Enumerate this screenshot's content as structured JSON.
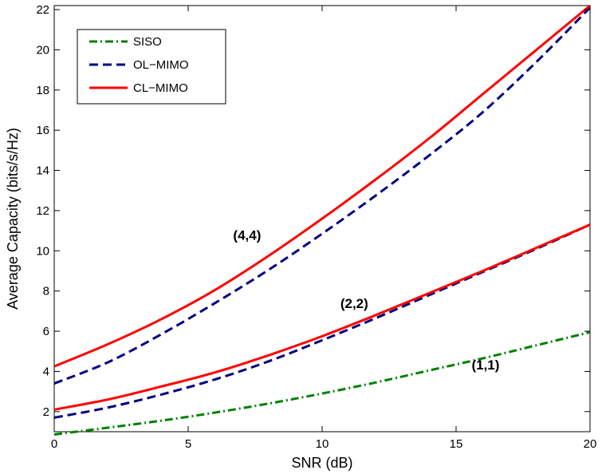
{
  "chart_data": {
    "type": "line",
    "xlabel": "SNR (dB)",
    "ylabel": "Average Capacity (bits/s/Hz)",
    "xlim": [
      0,
      20
    ],
    "ylim": [
      1,
      22.2
    ],
    "xticks": [
      0,
      5,
      10,
      15,
      20
    ],
    "yticks": [
      2,
      4,
      6,
      8,
      10,
      12,
      14,
      16,
      18,
      20,
      22
    ],
    "grid": false,
    "legend_position": "top-left",
    "legend": [
      {
        "name": "SISO",
        "color": "#008000",
        "dash": "dashdot"
      },
      {
        "name": "OL−MIMO",
        "color": "#000080",
        "dash": "dashed"
      },
      {
        "name": "CL−MIMO",
        "color": "#ff0000",
        "dash": "solid"
      }
    ],
    "x": [
      0,
      2,
      4,
      6,
      8,
      10,
      12,
      14,
      16,
      18,
      20
    ],
    "series": [
      {
        "label": "(1,1)",
        "kind": "SISO",
        "color": "#008000",
        "dash": "dashdot",
        "values": [
          0.86,
          1.2,
          1.55,
          1.95,
          2.4,
          2.9,
          3.45,
          4.05,
          4.65,
          5.3,
          5.95
        ]
      },
      {
        "label": "(2,2)",
        "kind": "OL−MIMO",
        "color": "#000080",
        "dash": "dashed",
        "values": [
          1.7,
          2.2,
          2.85,
          3.6,
          4.5,
          5.55,
          6.65,
          7.8,
          8.95,
          10.1,
          11.3
        ]
      },
      {
        "label": "(2,2)",
        "kind": "CL−MIMO",
        "color": "#ff0000",
        "dash": "solid",
        "values": [
          2.1,
          2.6,
          3.25,
          3.95,
          4.8,
          5.75,
          6.8,
          7.9,
          9.0,
          10.15,
          11.3
        ]
      },
      {
        "label": "(4,4)",
        "kind": "OL−MIMO",
        "color": "#000080",
        "dash": "dashed",
        "values": [
          3.4,
          4.45,
          5.85,
          7.4,
          9.05,
          10.85,
          12.75,
          14.75,
          16.9,
          19.4,
          22.1
        ]
      },
      {
        "label": "(4,4)",
        "kind": "CL−MIMO",
        "color": "#ff0000",
        "dash": "solid",
        "values": [
          4.25,
          5.35,
          6.6,
          8.05,
          9.75,
          11.6,
          13.55,
          15.6,
          17.8,
          20.0,
          22.2
        ]
      }
    ],
    "annotations": [
      {
        "text": "(4,4)",
        "x": 7.2,
        "y": 10.55
      },
      {
        "text": "(2,2)",
        "x": 11.2,
        "y": 7.15
      },
      {
        "text": "(1,1)",
        "x": 16.1,
        "y": 4.1
      }
    ]
  }
}
